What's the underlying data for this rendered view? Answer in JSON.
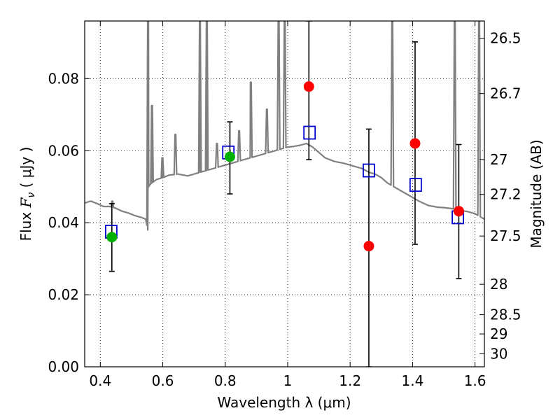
{
  "chart_data": {
    "type": "scatter",
    "xlabel": "Wavelength  λ (μm)",
    "ylabel": "Flux  F_ν  ( μJy )",
    "ylabel_parts": {
      "prefix": "Flux  ",
      "symbol": "F",
      "subscript": "ν",
      "suffix": "  ( μJy )"
    },
    "ylabel_right": "Magnitude (AB)",
    "xlim": [
      0.35,
      1.63
    ],
    "ylim": [
      0.0,
      0.096
    ],
    "grid": true,
    "x_ticks": [
      {
        "value": 0.4,
        "label": "0.4"
      },
      {
        "value": 0.6,
        "label": "0.6"
      },
      {
        "value": 0.8,
        "label": "0.8"
      },
      {
        "value": 1.0,
        "label": "1"
      },
      {
        "value": 1.2,
        "label": "1.2"
      },
      {
        "value": 1.4,
        "label": "1.4"
      },
      {
        "value": 1.6,
        "label": "1.6"
      }
    ],
    "y_ticks": [
      {
        "value": 0.0,
        "label": "0.00"
      },
      {
        "value": 0.02,
        "label": "0.02"
      },
      {
        "value": 0.04,
        "label": "0.04"
      },
      {
        "value": 0.06,
        "label": "0.06"
      },
      {
        "value": 0.08,
        "label": "0.08"
      }
    ],
    "right_ticks": [
      {
        "value": 26.5,
        "label": "26.5"
      },
      {
        "value": 26.7,
        "label": "26.7"
      },
      {
        "value": 27.0,
        "label": "27"
      },
      {
        "value": 27.2,
        "label": "27.2"
      },
      {
        "value": 27.5,
        "label": "27.5"
      },
      {
        "value": 28.0,
        "label": "28"
      },
      {
        "value": 28.5,
        "label": "28.5"
      },
      {
        "value": 29.0,
        "label": "29"
      },
      {
        "value": 30.0,
        "label": "30"
      }
    ],
    "template_spectrum": {
      "color": "#808080",
      "x": [
        0.35,
        0.37,
        0.39,
        0.41,
        0.43,
        0.45,
        0.47,
        0.49,
        0.51,
        0.53,
        0.545,
        0.552,
        0.555,
        0.558,
        0.565,
        0.58,
        0.6,
        0.62,
        0.65,
        0.68,
        0.7,
        0.72,
        0.74,
        0.76,
        0.78,
        0.8,
        0.82,
        0.84,
        0.86,
        0.88,
        0.9,
        0.92,
        0.94,
        0.96,
        0.98,
        1.0,
        1.02,
        1.04,
        1.06,
        1.08,
        1.1,
        1.12,
        1.15,
        1.18,
        1.2,
        1.22,
        1.24,
        1.26,
        1.28,
        1.3,
        1.32,
        1.35,
        1.38,
        1.4,
        1.42,
        1.45,
        1.48,
        1.5,
        1.52,
        1.55,
        1.58,
        1.6,
        1.63
      ],
      "y": [
        0.0455,
        0.046,
        0.0453,
        0.0445,
        0.0445,
        0.044,
        0.0432,
        0.0427,
        0.042,
        0.0415,
        0.041,
        0.038,
        0.05,
        0.0505,
        0.051,
        0.052,
        0.0525,
        0.0532,
        0.0535,
        0.053,
        0.0535,
        0.054,
        0.0545,
        0.055,
        0.0555,
        0.056,
        0.0565,
        0.057,
        0.0575,
        0.058,
        0.0585,
        0.059,
        0.0595,
        0.06,
        0.0605,
        0.061,
        0.0612,
        0.0615,
        0.062,
        0.061,
        0.0595,
        0.058,
        0.057,
        0.0565,
        0.056,
        0.0555,
        0.055,
        0.054,
        0.0535,
        0.0525,
        0.051,
        0.0495,
        0.048,
        0.047,
        0.046,
        0.0448,
        0.0443,
        0.0442,
        0.044,
        0.0435,
        0.043,
        0.0425,
        0.041
      ]
    },
    "emission_lines": {
      "color": "#808080",
      "lines": [
        {
          "x": 0.4385,
          "peak": 0.046
        },
        {
          "x": 0.553,
          "peak": 0.096
        },
        {
          "x": 0.5655,
          "peak": 0.0725
        },
        {
          "x": 0.599,
          "peak": 0.058
        },
        {
          "x": 0.6405,
          "peak": 0.0645
        },
        {
          "x": 0.719,
          "peak": 0.096
        },
        {
          "x": 0.741,
          "peak": 0.096
        },
        {
          "x": 0.7735,
          "peak": 0.062
        },
        {
          "x": 0.8445,
          "peak": 0.0655
        },
        {
          "x": 0.882,
          "peak": 0.079
        },
        {
          "x": 0.9335,
          "peak": 0.0715
        },
        {
          "x": 0.971,
          "peak": 0.096
        },
        {
          "x": 0.9905,
          "peak": 0.096
        },
        {
          "x": 1.335,
          "peak": 0.096
        },
        {
          "x": 1.535,
          "peak": 0.096
        },
        {
          "x": 1.613,
          "peak": 0.096
        }
      ]
    },
    "series": [
      {
        "marker": "open-square",
        "color": "#0000cc",
        "x": [
          0.435,
          0.81,
          1.07,
          1.26,
          1.41,
          1.545
        ],
        "y": [
          0.0375,
          0.0595,
          0.065,
          0.0545,
          0.0505,
          0.0415
        ]
      },
      {
        "marker": "filled-circle",
        "color": "#00b000",
        "x": [
          0.437,
          0.815
        ],
        "y": [
          0.036,
          0.0583
        ]
      },
      {
        "marker": "filled-circle",
        "color": "#ff0000",
        "x": [
          1.068,
          1.26,
          1.408,
          1.548
        ],
        "y": [
          0.0778,
          0.0335,
          0.062,
          0.0432
        ]
      }
    ],
    "error_bars": {
      "color": "#000000",
      "points": [
        {
          "x": 0.437,
          "low": 0.0265,
          "high": 0.0453
        },
        {
          "x": 0.815,
          "low": 0.048,
          "high": 0.068
        },
        {
          "x": 1.068,
          "low": 0.0575,
          "high": 0.096
        },
        {
          "x": 1.26,
          "low": 0.0,
          "high": 0.066
        },
        {
          "x": 1.408,
          "low": 0.034,
          "high": 0.0902
        },
        {
          "x": 1.548,
          "low": 0.0245,
          "high": 0.0617
        }
      ]
    }
  }
}
